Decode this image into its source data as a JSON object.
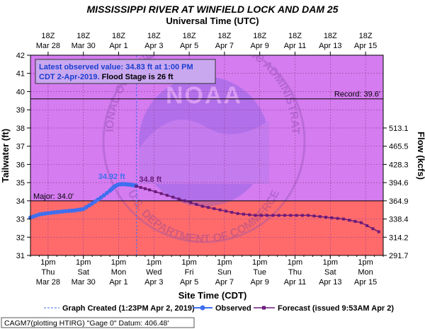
{
  "chart_data": {
    "type": "line",
    "title": "MISSISSIPPI RIVER AT WINFIELD LOCK AND DAM 25",
    "top_axis_label": "Universal Time (UTC)",
    "xlabel": "Site Time (CDT)",
    "ylabel": "Tailwater (ft)",
    "y2label": "Flow (kcfs)",
    "ylim": [
      31,
      42
    ],
    "y_ticks": [
      "31",
      "32",
      "33",
      "34",
      "35",
      "36",
      "37",
      "38",
      "39",
      "40",
      "41",
      "42"
    ],
    "flow_ticks": [
      {
        "stage": 31,
        "label": "291.7"
      },
      {
        "stage": 32,
        "label": "314.2"
      },
      {
        "stage": 33,
        "label": "338.4"
      },
      {
        "stage": 34,
        "label": "364.9"
      },
      {
        "stage": 35,
        "label": "394.6"
      },
      {
        "stage": 36,
        "label": "428.3"
      },
      {
        "stage": 37,
        "label": "465.5"
      },
      {
        "stage": 38,
        "label": "513.1"
      }
    ],
    "top_ticks": [
      {
        "l1": "18Z",
        "l2": "Mar 28"
      },
      {
        "l1": "18Z",
        "l2": "Mar 30"
      },
      {
        "l1": "18Z",
        "l2": "Apr 1"
      },
      {
        "l1": "18Z",
        "l2": "Apr 3"
      },
      {
        "l1": "18Z",
        "l2": "Apr 5"
      },
      {
        "l1": "18Z",
        "l2": "Apr 7"
      },
      {
        "l1": "18Z",
        "l2": "Apr 9"
      },
      {
        "l1": "18Z",
        "l2": "Apr 11"
      },
      {
        "l1": "18Z",
        "l2": "Apr 13"
      },
      {
        "l1": "18Z",
        "l2": "Apr 15"
      }
    ],
    "bottom_ticks": [
      {
        "l1": "1pm",
        "l2": "Thu",
        "l3": "Mar 28"
      },
      {
        "l1": "1pm",
        "l2": "Sat",
        "l3": "Mar 30"
      },
      {
        "l1": "1pm",
        "l2": "Mon",
        "l3": "Apr 1"
      },
      {
        "l1": "1pm",
        "l2": "Wed",
        "l3": "Apr 3"
      },
      {
        "l1": "1pm",
        "l2": "Fri",
        "l3": "Apr 5"
      },
      {
        "l1": "1pm",
        "l2": "Sun",
        "l3": "Apr 7"
      },
      {
        "l1": "1pm",
        "l2": "Tue",
        "l3": "Apr 9"
      },
      {
        "l1": "1pm",
        "l2": "Thu",
        "l3": "Apr 11"
      },
      {
        "l1": "1pm",
        "l2": "Sat",
        "l3": "Apr 13"
      },
      {
        "l1": "1pm",
        "l2": "Mon",
        "l3": "Apr 15"
      }
    ],
    "x_start": "2019-03-27 13:00 CDT",
    "x_end": "2019-04-16 13:00 CDT",
    "graph_created": "2019-04-02 13:23 CDT",
    "thresholds": {
      "major": {
        "value": 34.0,
        "label": "Major: 34.0'",
        "color": "#ff6b6b"
      },
      "record": {
        "value": 39.6,
        "label": "Record: 39.6'"
      },
      "above_major_color": "#d57cf0"
    },
    "series": [
      {
        "name": "Observed",
        "color": "#3f6fef",
        "points": [
          [
            "2019-03-27 13:00",
            33.08
          ],
          [
            "2019-03-28 01:00",
            33.25
          ],
          [
            "2019-03-28 13:00",
            33.32
          ],
          [
            "2019-03-29 01:00",
            33.38
          ],
          [
            "2019-03-29 13:00",
            33.43
          ],
          [
            "2019-03-30 01:00",
            33.47
          ],
          [
            "2019-03-30 13:00",
            33.55
          ],
          [
            "2019-03-31 01:00",
            33.85
          ],
          [
            "2019-03-31 13:00",
            34.18
          ],
          [
            "2019-04-01 01:00",
            34.55
          ],
          [
            "2019-04-01 07:00",
            34.78
          ],
          [
            "2019-04-01 13:00",
            34.9
          ],
          [
            "2019-04-01 19:00",
            34.92
          ],
          [
            "2019-04-02 01:00",
            34.9
          ],
          [
            "2019-04-02 07:00",
            34.87
          ],
          [
            "2019-04-02 13:00",
            34.83
          ]
        ]
      },
      {
        "name": "Forecast (issued 9:53AM Apr 2)",
        "color": "#6a1b7a",
        "points": [
          [
            "2019-04-02 13:00",
            34.8
          ],
          [
            "2019-04-03 07:00",
            34.6
          ],
          [
            "2019-04-04 07:00",
            34.3
          ],
          [
            "2019-04-05 07:00",
            34.0
          ],
          [
            "2019-04-06 07:00",
            33.7
          ],
          [
            "2019-04-07 07:00",
            33.5
          ],
          [
            "2019-04-08 07:00",
            33.3
          ],
          [
            "2019-04-09 07:00",
            33.2
          ],
          [
            "2019-04-10 07:00",
            33.2
          ],
          [
            "2019-04-11 07:00",
            33.2
          ],
          [
            "2019-04-12 07:00",
            33.2
          ],
          [
            "2019-04-13 07:00",
            33.1
          ],
          [
            "2019-04-14 07:00",
            33.0
          ],
          [
            "2019-04-15 07:00",
            32.8
          ],
          [
            "2019-04-16 07:00",
            32.3
          ]
        ]
      }
    ],
    "annotations": {
      "observed_peak": {
        "label": "34.92 ft",
        "date": "2019-04-01 19:00",
        "value": 34.92
      },
      "forecast_peak": {
        "label": "34.8 ft",
        "date": "2019-04-02 13:00",
        "value": 34.8
      }
    },
    "info_box": {
      "line1": "Latest observed value: 34.83  ft at 1:00 PM",
      "line2a": "CDT 2-Apr-2019. ",
      "line2b": "Flood Stage is 26 ft"
    },
    "legend": {
      "created": "Graph Created (1:23PM Apr 2, 2019)",
      "observed": "Observed",
      "forecast": "Forecast (issued 9:53AM Apr 2)"
    },
    "footer": "CAGM7(plotting HTIRG) \"Gage 0\" Datum: 406.48'",
    "watermark": {
      "text": "NOAA",
      "arc_top": "NATIONAL OCEANIC AND ATMOSPHERIC ADMINISTRATION",
      "arc_bottom": "U.S. DEPARTMENT OF COMMERCE"
    },
    "grid": true
  }
}
